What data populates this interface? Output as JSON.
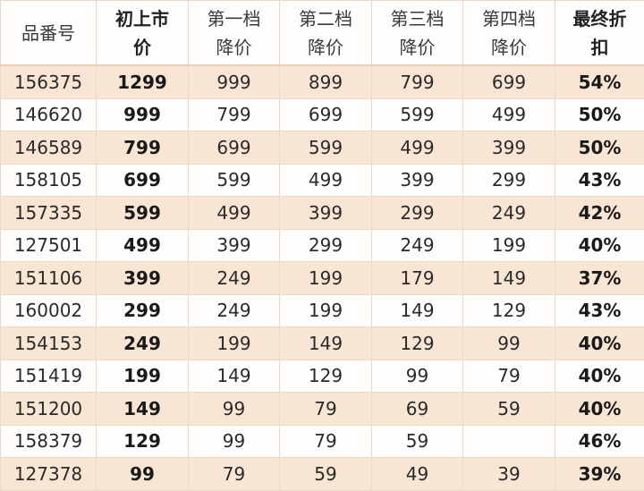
{
  "table": {
    "headers": [
      {
        "line1": "品番号",
        "line2": "",
        "bold": false
      },
      {
        "line1": "初上市",
        "line2": "价",
        "bold": true
      },
      {
        "line1": "第一档",
        "line2": "降价",
        "bold": false
      },
      {
        "line1": "第二档",
        "line2": "降价",
        "bold": false
      },
      {
        "line1": "第三档",
        "line2": "降价",
        "bold": false
      },
      {
        "line1": "第四档",
        "line2": "降价",
        "bold": false
      },
      {
        "line1": "最终折",
        "line2": "扣",
        "bold": true
      }
    ],
    "rows": [
      [
        "156375",
        "1299",
        "999",
        "899",
        "799",
        "699",
        "54%"
      ],
      [
        "146620",
        "999",
        "799",
        "699",
        "599",
        "499",
        "50%"
      ],
      [
        "146589",
        "799",
        "699",
        "599",
        "499",
        "399",
        "50%"
      ],
      [
        "158105",
        "699",
        "599",
        "499",
        "399",
        "299",
        "43%"
      ],
      [
        "157335",
        "599",
        "499",
        "399",
        "299",
        "249",
        "42%"
      ],
      [
        "127501",
        "499",
        "399",
        "299",
        "249",
        "199",
        "40%"
      ],
      [
        "151106",
        "399",
        "249",
        "199",
        "179",
        "149",
        "37%"
      ],
      [
        "160002",
        "299",
        "249",
        "199",
        "149",
        "129",
        "43%"
      ],
      [
        "154153",
        "249",
        "199",
        "149",
        "129",
        "99",
        "40%"
      ],
      [
        "151419",
        "199",
        "149",
        "129",
        "99",
        "79",
        "40%"
      ],
      [
        "151200",
        "149",
        "99",
        "79",
        "69",
        "59",
        "40%"
      ],
      [
        "158379",
        "129",
        "99",
        "79",
        "59",
        "",
        "46%"
      ],
      [
        "127378",
        "99",
        "79",
        "59",
        "49",
        "39",
        "39%"
      ]
    ]
  },
  "colors": {
    "row_stripe": "#f9e5d3",
    "row_plain": "#fffdfb",
    "border": "#ead9c6"
  }
}
